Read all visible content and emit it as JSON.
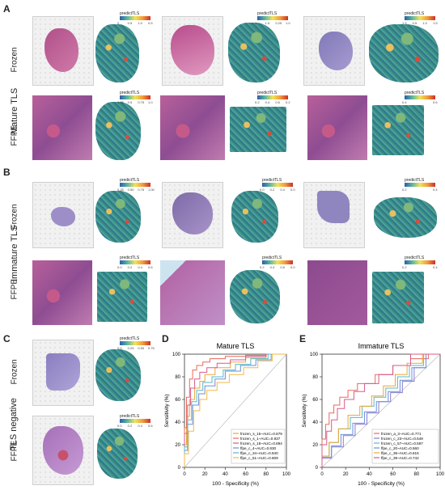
{
  "panels": {
    "A": {
      "label": "A",
      "group": "Mature TLS"
    },
    "B": {
      "label": "B",
      "group": "Immature TLS"
    },
    "C": {
      "label": "C",
      "group": "TLS negative"
    },
    "D": {
      "label": "D"
    },
    "E": {
      "label": "E"
    }
  },
  "row_labels": {
    "frozen": "Frozen",
    "ffpe": "FFPE"
  },
  "colorbar_title": "predictTLS",
  "colorbar_ticks": {
    "A_frozen": [
      "0",
      "0.5",
      "1.0",
      "0.5",
      "1",
      "1.5",
      "0.25",
      "1.0",
      "1.5",
      "0.5",
      "1.0",
      "1.5"
    ],
    "A_ffpe": [
      "0.25",
      "0.5",
      "0.75",
      "1.0",
      "0.2",
      "0.4",
      "0.6",
      "0.2",
      "0.4",
      "0.6"
    ],
    "B_frozen": [
      "0.25",
      "0.50",
      "0.75",
      "1.00",
      "0.0",
      "0.2",
      "0.4",
      "0.0",
      "0.2",
      "0.4"
    ],
    "B_ffpe": [
      "0.0",
      "0.2",
      "0.4",
      "0.6",
      "0.2",
      "0.4",
      "0.6",
      "0.0",
      "0.2",
      "0.4"
    ],
    "C_frozen": [
      "0.0",
      "0.25",
      "0.50",
      "0.75"
    ],
    "C_ffpe": [
      "0.0",
      "0.2",
      "0.4",
      "0.6"
    ]
  },
  "chart_data": [
    {
      "type": "line",
      "title": "Mature TLS",
      "xlabel": "100 - Specificity (%)",
      "ylabel": "Sensitivity (%)",
      "xlim": [
        0,
        100
      ],
      "ylim": [
        0,
        100
      ],
      "xticks": [
        "0",
        "20",
        "40",
        "60",
        "80",
        "100"
      ],
      "yticks": [
        "0",
        "20",
        "40",
        "60",
        "80",
        "100"
      ],
      "legend_position": "bottom-right",
      "series": [
        {
          "name": "frozen_s_15~AUC=0.879",
          "color": "#e8a838",
          "x": [
            0,
            2,
            5,
            10,
            15,
            20,
            30,
            45,
            60,
            80,
            100
          ],
          "y": [
            0,
            20,
            45,
            60,
            70,
            76,
            82,
            88,
            93,
            97,
            100
          ]
        },
        {
          "name": "frozen_s_1~AUC=0.937",
          "color": "#e86a5a",
          "x": [
            0,
            2,
            5,
            8,
            12,
            18,
            25,
            40,
            60,
            80,
            100
          ],
          "y": [
            0,
            35,
            62,
            78,
            86,
            90,
            93,
            96,
            98,
            99,
            100
          ]
        },
        {
          "name": "frozen_s_18~AUC=0.894",
          "color": "#d85a8a",
          "x": [
            0,
            3,
            6,
            10,
            15,
            22,
            32,
            45,
            60,
            80,
            100
          ],
          "y": [
            0,
            30,
            55,
            70,
            78,
            84,
            88,
            92,
            95,
            98,
            100
          ]
        },
        {
          "name": "ffpe_c_4~AUC=0.830",
          "color": "#6a8fd8",
          "x": [
            0,
            3,
            8,
            14,
            20,
            30,
            40,
            55,
            70,
            85,
            100
          ],
          "y": [
            0,
            15,
            38,
            55,
            65,
            72,
            78,
            85,
            90,
            95,
            100
          ]
        },
        {
          "name": "ffpe_c_34~AUC=0.840",
          "color": "#58b8c8",
          "x": [
            0,
            3,
            7,
            12,
            18,
            27,
            38,
            50,
            65,
            82,
            100
          ],
          "y": [
            0,
            18,
            42,
            58,
            68,
            75,
            80,
            86,
            91,
            96,
            100
          ]
        },
        {
          "name": "ffpe_c_51~AUC=0.809",
          "color": "#f2b94a",
          "x": [
            0,
            4,
            9,
            15,
            22,
            32,
            44,
            58,
            72,
            86,
            100
          ],
          "y": [
            0,
            12,
            32,
            50,
            60,
            68,
            75,
            82,
            88,
            94,
            100
          ]
        }
      ]
    },
    {
      "type": "line",
      "title": "Immature TLS",
      "xlabel": "100 - Specificity (%)",
      "ylabel": "Sensitivity (%)",
      "xlim": [
        0,
        100
      ],
      "ylim": [
        0,
        100
      ],
      "xticks": [
        "0",
        "20",
        "40",
        "60",
        "80",
        "100"
      ],
      "yticks": [
        "0",
        "20",
        "40",
        "60",
        "80",
        "100"
      ],
      "legend_position": "bottom-right",
      "series": [
        {
          "name": "frozen_a_3~AUC=0.771",
          "color": "#e86a5a",
          "x": [
            0,
            3,
            6,
            10,
            15,
            22,
            30,
            45,
            60,
            75,
            90,
            100
          ],
          "y": [
            0,
            25,
            38,
            48,
            55,
            62,
            68,
            74,
            82,
            90,
            96,
            100
          ]
        },
        {
          "name": "frozen_c_23~AUC=0.549",
          "color": "#8a7ad0",
          "x": [
            0,
            8,
            18,
            28,
            38,
            48,
            58,
            68,
            78,
            88,
            100
          ],
          "y": [
            0,
            8,
            18,
            28,
            38,
            48,
            58,
            66,
            76,
            88,
            100
          ]
        },
        {
          "name": "frozen_c_57~AUC=0.597",
          "color": "#58b8c8",
          "x": [
            0,
            6,
            14,
            24,
            34,
            44,
            54,
            64,
            74,
            86,
            100
          ],
          "y": [
            0,
            10,
            22,
            34,
            44,
            54,
            62,
            70,
            80,
            90,
            100
          ]
        },
        {
          "name": "ffpe_c_20~AUC=0.560",
          "color": "#6a8fd8",
          "x": [
            0,
            8,
            16,
            26,
            36,
            46,
            56,
            66,
            76,
            88,
            100
          ],
          "y": [
            0,
            9,
            19,
            29,
            39,
            49,
            58,
            67,
            77,
            88,
            100
          ]
        },
        {
          "name": "ffpe_c_36~AUC=0.615",
          "color": "#e8a838",
          "x": [
            0,
            6,
            14,
            22,
            32,
            42,
            52,
            62,
            72,
            85,
            100
          ],
          "y": [
            0,
            10,
            22,
            34,
            46,
            54,
            63,
            72,
            82,
            92,
            100
          ]
        },
        {
          "name": "ffpe_c_39~AUC=0.742",
          "color": "#d85a8a",
          "x": [
            0,
            4,
            8,
            13,
            19,
            27,
            36,
            48,
            60,
            75,
            100
          ],
          "y": [
            0,
            20,
            32,
            42,
            52,
            60,
            67,
            74,
            82,
            90,
            100
          ]
        }
      ]
    }
  ]
}
